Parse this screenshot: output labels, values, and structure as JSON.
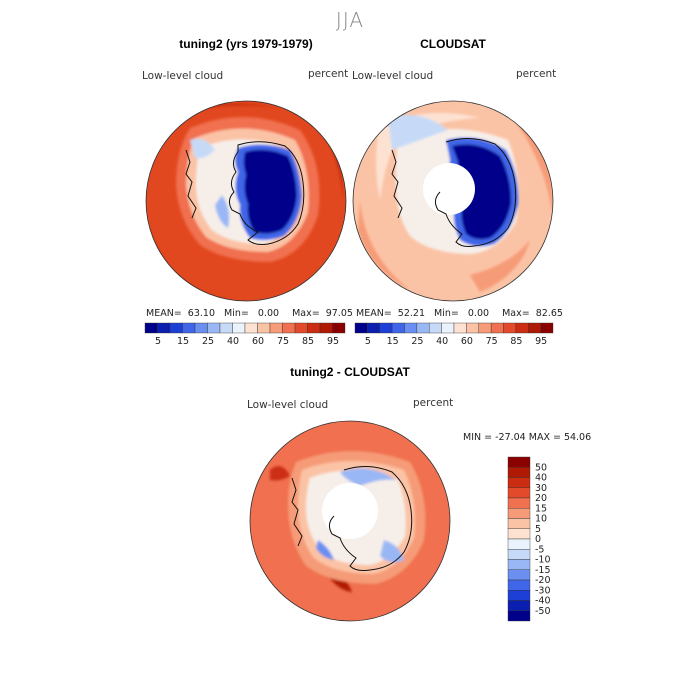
{
  "figure": {
    "season": "JJA",
    "panels": [
      {
        "title": "tuning2 (yrs 1979-1979)",
        "field": "Low-level cloud",
        "units": "percent",
        "stats": {
          "mean_label": "MEAN=",
          "mean": "63.10",
          "min_label": "Min=",
          "min": "0.00",
          "max_label": "Max=",
          "max": "97.05"
        }
      },
      {
        "title": "CLOUDSAT",
        "field": "Low-level cloud",
        "units": "percent",
        "stats": {
          "mean_label": "MEAN=",
          "mean": "52.21",
          "min_label": "Min=",
          "min": "0.00",
          "max_label": "Max=",
          "max": "82.65"
        }
      },
      {
        "title": "tuning2 - CLOUDSAT",
        "field": "Low-level cloud",
        "units": "percent",
        "range_text": "MIN = -27.04 MAX =  54.06"
      }
    ],
    "colors": {
      "deep_blue": "#00008b",
      "land_outline": "#111111",
      "missing": "#ffffff"
    }
  },
  "chart_data": [
    {
      "type": "heatmap",
      "projection": "south-polar-stereographic",
      "title": "tuning2 (yrs 1979-1979)",
      "variable": "Low-level cloud",
      "units": "percent",
      "mean": 63.1,
      "min": 0.0,
      "max": 97.05,
      "colorbar": {
        "orientation": "horizontal",
        "tick_labels": [
          "5",
          "15",
          "25",
          "40",
          "60",
          "75",
          "85",
          "95"
        ],
        "colors": [
          "#00008b",
          "#0a1fb0",
          "#1e3fd6",
          "#3f66e8",
          "#6a8ff0",
          "#9ab7f5",
          "#c6daf8",
          "#eaf2fb",
          "#fde2d2",
          "#fbc3a5",
          "#f69b77",
          "#f0704f",
          "#e24a2b",
          "#cc2d12",
          "#b01a04",
          "#8b0000"
        ]
      }
    },
    {
      "type": "heatmap",
      "projection": "south-polar-stereographic",
      "title": "CLOUDSAT",
      "variable": "Low-level cloud",
      "units": "percent",
      "mean": 52.21,
      "min": 0.0,
      "max": 82.65,
      "colorbar": {
        "orientation": "horizontal",
        "tick_labels": [
          "5",
          "15",
          "25",
          "40",
          "60",
          "75",
          "85",
          "95"
        ],
        "colors": [
          "#00008b",
          "#0a1fb0",
          "#1e3fd6",
          "#3f66e8",
          "#6a8ff0",
          "#9ab7f5",
          "#c6daf8",
          "#eaf2fb",
          "#fde2d2",
          "#fbc3a5",
          "#f69b77",
          "#f0704f",
          "#e24a2b",
          "#cc2d12",
          "#b01a04",
          "#8b0000"
        ]
      }
    },
    {
      "type": "heatmap",
      "projection": "south-polar-stereographic",
      "title": "tuning2 - CLOUDSAT",
      "variable": "Low-level cloud",
      "units": "percent",
      "min": -27.04,
      "max": 54.06,
      "colorbar": {
        "orientation": "vertical",
        "tick_labels": [
          "50",
          "40",
          "30",
          "20",
          "15",
          "10",
          "5",
          "0",
          "-5",
          "-10",
          "-15",
          "-20",
          "-30",
          "-40",
          "-50"
        ],
        "colors": [
          "#8b0000",
          "#b01a04",
          "#cc2d12",
          "#e24a2b",
          "#f0704f",
          "#f69b77",
          "#fbc3a5",
          "#fde2d2",
          "#eaf2fb",
          "#c6daf8",
          "#9ab7f5",
          "#6a8ff0",
          "#3f66e8",
          "#1e3fd6",
          "#0a1fb0",
          "#00008b"
        ]
      }
    }
  ]
}
